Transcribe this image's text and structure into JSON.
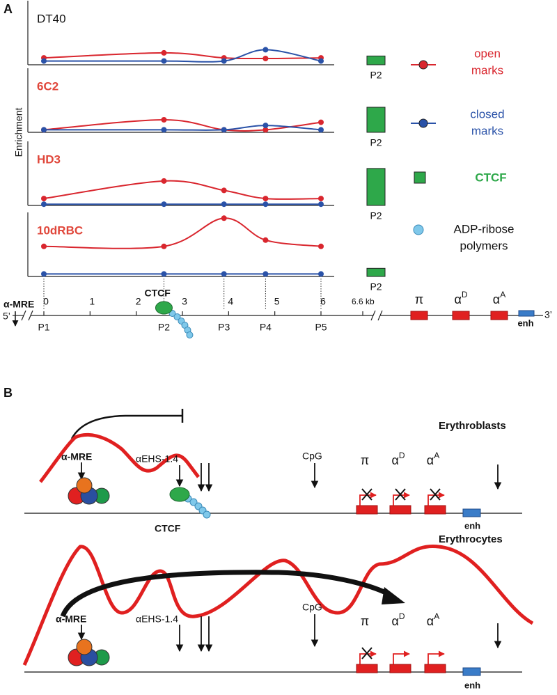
{
  "chart_data": [
    {
      "type": "line",
      "title": "DT40",
      "title_color": "#111111",
      "title_bold": false,
      "x": [
        0,
        2.6,
        3.9,
        4.8,
        6
      ],
      "xlim": [
        0,
        6
      ],
      "ylim": [
        0,
        100
      ],
      "series": [
        {
          "color": "#d9262e",
          "values": [
            11,
            19,
            11,
            10,
            11
          ]
        },
        {
          "color": "#2a52a8",
          "values": [
            6,
            6,
            6,
            24,
            6
          ]
        }
      ],
      "bar": {
        "category": "P2",
        "value": 14,
        "color": "#2ea84a"
      }
    },
    {
      "type": "line",
      "title": "6C2",
      "title_color": "#e0463a",
      "title_bold": true,
      "x": [
        0,
        2.6,
        3.9,
        4.8,
        6
      ],
      "xlim": [
        0,
        6
      ],
      "ylim": [
        0,
        100
      ],
      "series": [
        {
          "color": "#d9262e",
          "values": [
            4,
            20,
            4,
            4,
            16
          ]
        },
        {
          "color": "#2a52a8",
          "values": [
            4,
            4,
            4,
            11,
            4
          ]
        }
      ],
      "bar": {
        "category": "P2",
        "value": 40,
        "color": "#2ea84a"
      }
    },
    {
      "type": "line",
      "title": "HD3",
      "title_color": "#e0463a",
      "title_bold": true,
      "x": [
        0,
        2.6,
        3.9,
        4.8,
        6
      ],
      "xlim": [
        0,
        6
      ],
      "ylim": [
        0,
        100
      ],
      "series": [
        {
          "color": "#d9262e",
          "values": [
            11,
            39,
            24,
            11,
            11
          ]
        },
        {
          "color": "#2a52a8",
          "values": [
            2,
            2,
            2,
            2,
            2
          ]
        }
      ],
      "bar": {
        "category": "P2",
        "value": 59,
        "color": "#2ea84a"
      }
    },
    {
      "type": "line",
      "title": "10dRBC",
      "title_color": "#e0463a",
      "title_bold": true,
      "x": [
        0,
        2.6,
        3.9,
        4.8,
        6
      ],
      "xlim": [
        0,
        6
      ],
      "ylim": [
        0,
        100
      ],
      "series": [
        {
          "color": "#d9262e",
          "values": [
            48,
            48,
            93,
            58,
            48
          ]
        },
        {
          "color": "#2a52a8",
          "values": [
            4,
            4,
            4,
            4,
            4
          ]
        }
      ],
      "bar": {
        "category": "P2",
        "value": 13,
        "color": "#2ea84a"
      }
    }
  ],
  "figure": {
    "panel_labels": {
      "a": "A",
      "b": "B"
    },
    "y_axis_label": "Enrichment",
    "legend": {
      "open": [
        "open",
        "marks"
      ],
      "closed": [
        "closed",
        "marks"
      ],
      "ctcf": "CTCF",
      "adp": [
        "ADP-ribose",
        "polymers"
      ]
    },
    "map": {
      "mre": "α-MRE",
      "five": "5’",
      "three": "3’",
      "ticks": [
        0,
        1,
        2,
        3,
        4,
        5,
        6
      ],
      "end": "6.6 kb",
      "ctcf": "CTCF",
      "sites": [
        "P1",
        "P2",
        "P3",
        "P4",
        "P5"
      ],
      "genes": [
        {
          "base": "π"
        },
        {
          "base": "α",
          "sup": "D"
        },
        {
          "base": "α",
          "sup": "A"
        }
      ],
      "enh": "enh"
    },
    "panel_b": {
      "erythroblasts": {
        "title": "Erythroblasts",
        "mre": "α-MRE",
        "ehs": "αEHS-1.4",
        "ctcf": "CTCF",
        "cpg": "CpG",
        "genes": [
          {
            "base": "π"
          },
          {
            "base": "α",
            "sup": "D"
          },
          {
            "base": "α",
            "sup": "A"
          }
        ],
        "enh": "enh"
      },
      "erythrocytes": {
        "title": "Erythrocytes",
        "mre": "α-MRE",
        "ehs": "αEHS-1.4",
        "cpg": "CpG",
        "genes": [
          {
            "base": "π"
          },
          {
            "base": "α",
            "sup": "D"
          },
          {
            "base": "α",
            "sup": "A"
          }
        ],
        "enh": "enh"
      }
    }
  }
}
